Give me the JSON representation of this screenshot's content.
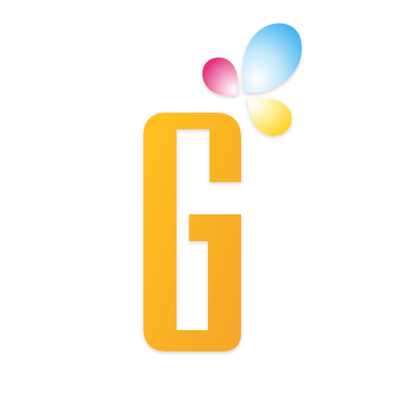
{
  "logo": {
    "letter": "G",
    "colors": {
      "letter_light": "#FFC21F",
      "letter_dark": "#F6A52A",
      "petal_blue": "#3FB3EF",
      "petal_pink": "#E2337F",
      "petal_yellow": "#FFD52E",
      "background": "#FFFFFF"
    }
  }
}
